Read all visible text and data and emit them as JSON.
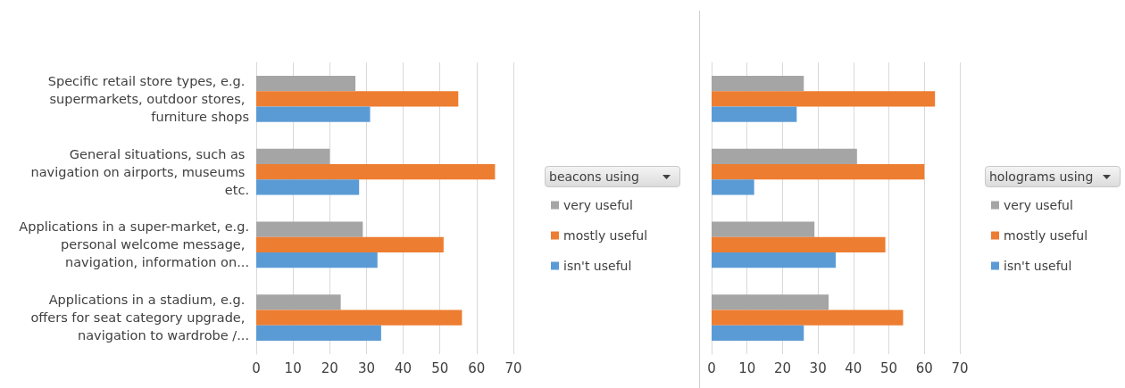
{
  "chart_data": [
    {
      "type": "bar",
      "orientation": "horizontal",
      "legend_title": "beacons using",
      "legend": "right",
      "grid": "x",
      "xlim": [
        0,
        70
      ],
      "xticks": [
        0,
        10,
        20,
        30,
        40,
        50,
        60,
        70
      ],
      "categories": [
        "Specific retail store types, e.g. supermarkets, outdoor stores, furniture shops",
        "General situations, such as navigation on airports, museums etc.",
        "Applications in a super-market, e.g. personal welcome message, navigation, information on...",
        "Applications in a stadium, e.g. offers for seat category upgrade, navigation to wardrobe /..."
      ],
      "series": [
        {
          "name": "very useful",
          "color": "#a5a5a5",
          "values": [
            27,
            20,
            29,
            23
          ]
        },
        {
          "name": "mostly useful",
          "color": "#ed7d31",
          "values": [
            55,
            65,
            51,
            56
          ]
        },
        {
          "name": "isn't useful",
          "color": "#5b9bd5",
          "values": [
            31,
            28,
            33,
            34
          ]
        }
      ]
    },
    {
      "type": "bar",
      "orientation": "horizontal",
      "legend_title": "holograms using",
      "legend": "right",
      "grid": "x",
      "tick_labels": "x",
      "xlim": [
        0,
        70
      ],
      "xticks": [
        0,
        10,
        20,
        30,
        40,
        50,
        60,
        70
      ],
      "categories": [
        null,
        null,
        null,
        null
      ],
      "series": [
        {
          "name": "very useful",
          "color": "#a5a5a5",
          "values": [
            26,
            41,
            29,
            33
          ]
        },
        {
          "name": "mostly useful",
          "color": "#ed7d31",
          "values": [
            63,
            60,
            49,
            54
          ]
        },
        {
          "name": "isn't useful",
          "color": "#5b9bd5",
          "values": [
            24,
            12,
            35,
            26
          ]
        }
      ]
    }
  ]
}
